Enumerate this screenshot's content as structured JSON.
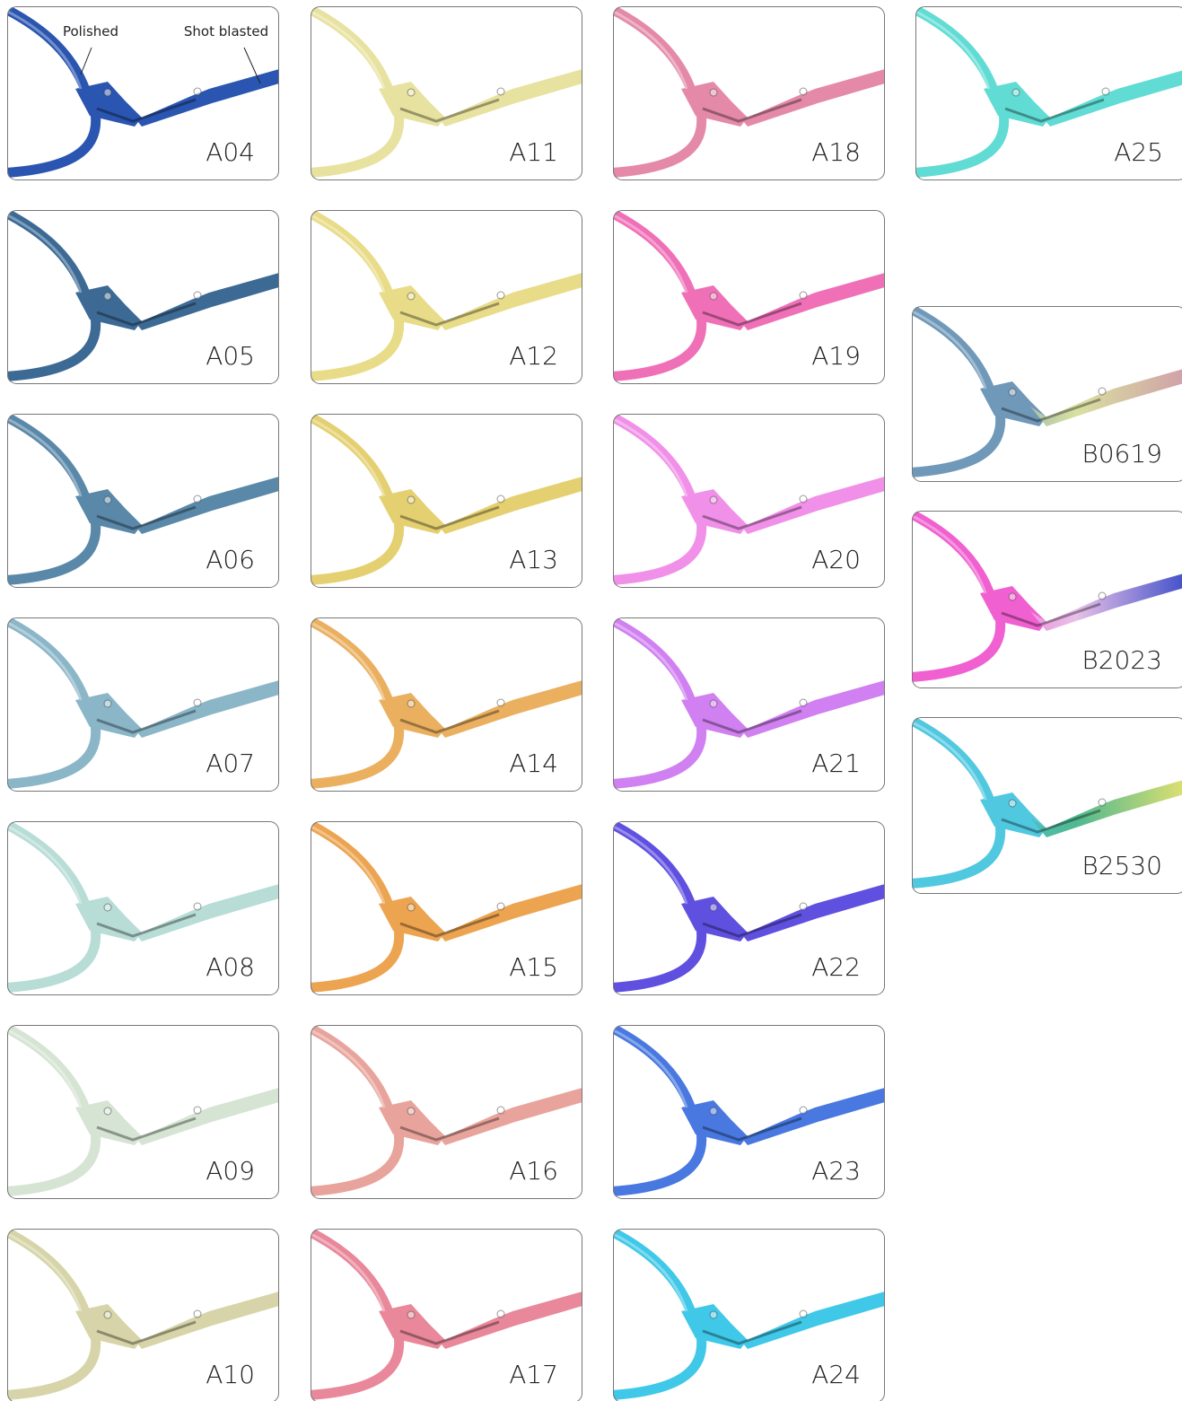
{
  "swatches": [
    {
      "code": "A04",
      "colors": [
        "#2a55b0"
      ]
    },
    {
      "code": "A05",
      "colors": [
        "#3c6a95"
      ]
    },
    {
      "code": "A06",
      "colors": [
        "#5a88a8"
      ]
    },
    {
      "code": "A07",
      "colors": [
        "#8ab6c8"
      ]
    },
    {
      "code": "A08",
      "colors": [
        "#b8dcd6"
      ]
    },
    {
      "code": "A09",
      "colors": [
        "#d6e4d4"
      ]
    },
    {
      "code": "A10",
      "colors": [
        "#d6d4a8"
      ]
    },
    {
      "code": "A11",
      "colors": [
        "#e8e2a0"
      ]
    },
    {
      "code": "A12",
      "colors": [
        "#e8dc88"
      ]
    },
    {
      "code": "A13",
      "colors": [
        "#e4d070"
      ]
    },
    {
      "code": "A14",
      "colors": [
        "#eab060"
      ]
    },
    {
      "code": "A15",
      "colors": [
        "#eca450"
      ]
    },
    {
      "code": "A16",
      "colors": [
        "#e8a49c"
      ]
    },
    {
      "code": "A17",
      "colors": [
        "#e8889a"
      ]
    },
    {
      "code": "A18",
      "colors": [
        "#e48aa8"
      ]
    },
    {
      "code": "A19",
      "colors": [
        "#f070b8"
      ]
    },
    {
      "code": "A20",
      "colors": [
        "#f090e8"
      ]
    },
    {
      "code": "A21",
      "colors": [
        "#d080f0"
      ]
    },
    {
      "code": "A22",
      "colors": [
        "#6050e0"
      ]
    },
    {
      "code": "A23",
      "colors": [
        "#4878e0"
      ]
    },
    {
      "code": "A24",
      "colors": [
        "#40c8e8"
      ]
    },
    {
      "code": "A25",
      "colors": [
        "#60dcd4"
      ]
    },
    {
      "code": "B0619",
      "colors": [
        "#7098b8",
        "#d8e0a0",
        "#d0a0a8"
      ]
    },
    {
      "code": "B2023",
      "colors": [
        "#f060d0",
        "#e8c0e8",
        "#4050c8"
      ]
    },
    {
      "code": "B2530",
      "colors": [
        "#50c8e0",
        "#50b890",
        "#e0e070"
      ]
    }
  ],
  "annotations": {
    "polished": "Polished",
    "shot_blasted": "Shot blasted"
  }
}
